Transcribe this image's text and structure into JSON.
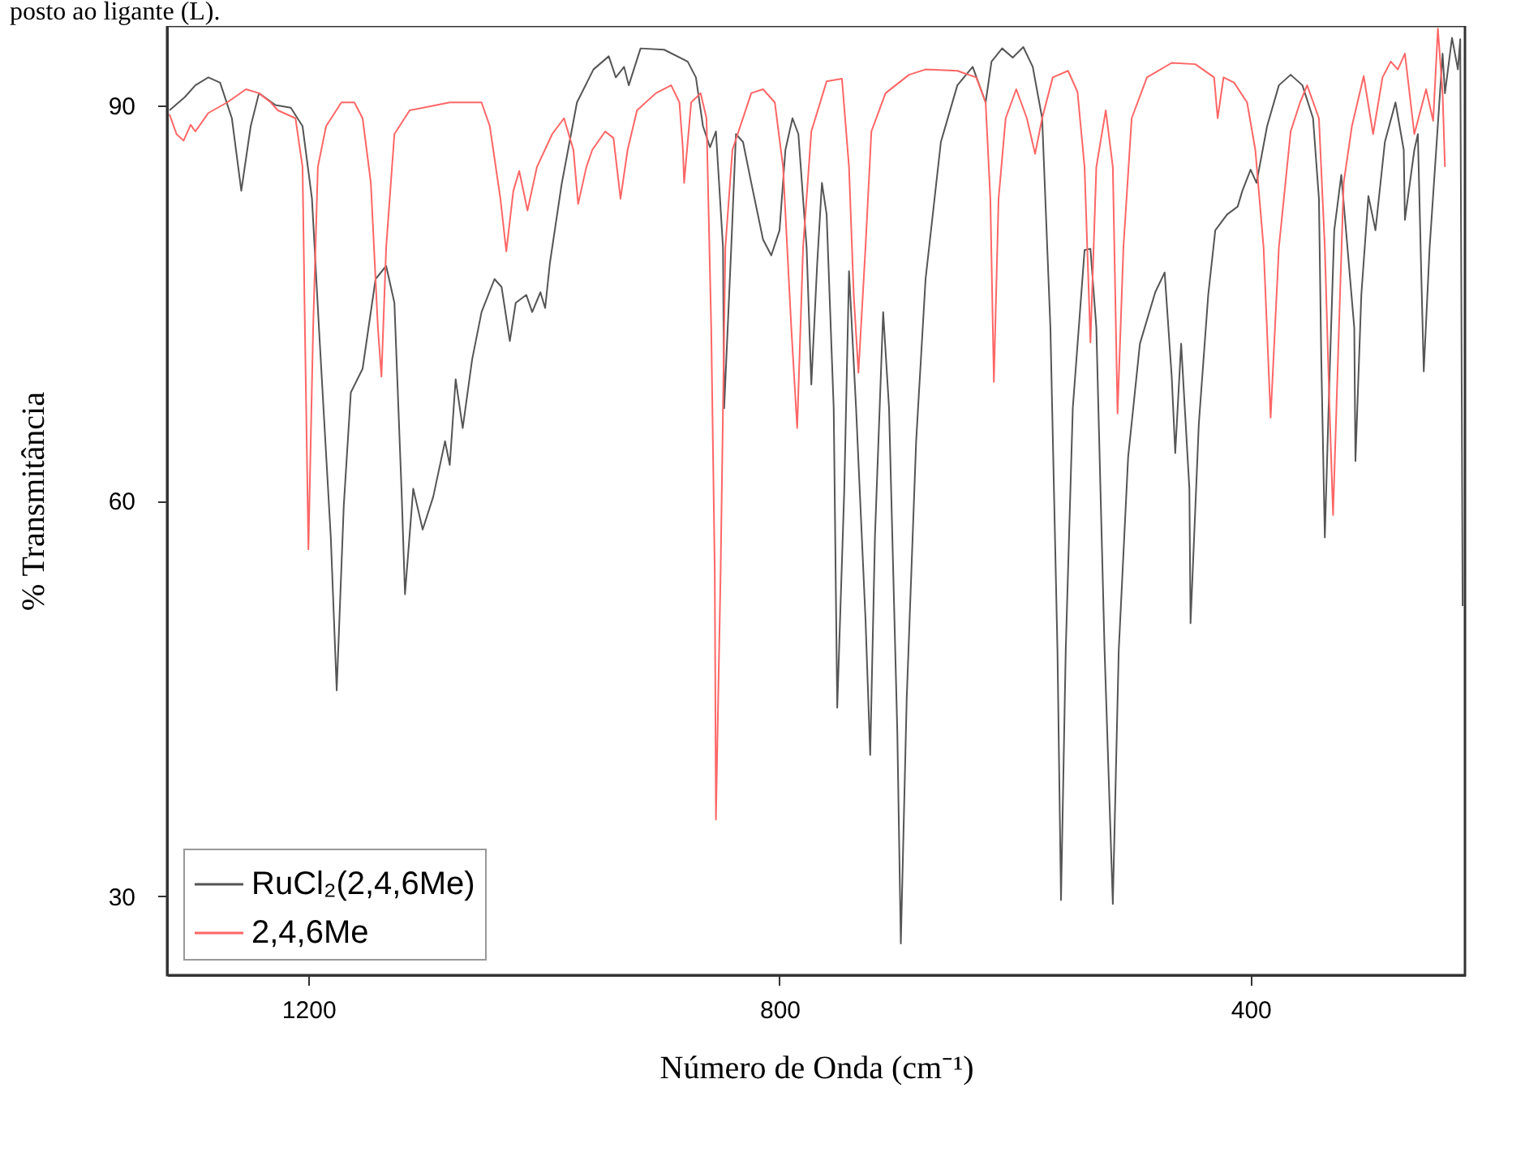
{
  "chart_data": {
    "type": "line",
    "xlabel": "Número de Onda (cm⁻¹)",
    "ylabel": "% Transmitância",
    "annotations": [
      "posto ao ligante (L)."
    ],
    "xlim": [
      1320,
      218
    ],
    "xticks": [
      1200,
      800,
      400
    ],
    "ylim": [
      24,
      96
    ],
    "yticks": [
      90,
      60,
      30
    ],
    "grid": false,
    "legend": "bottom left",
    "line_style": "solid",
    "marker": "none",
    "series": [
      {
        "name": "RuCl₂(2,4,6Me)",
        "color": "#555555",
        "x": [
          1318,
          1305,
          1296,
          1285,
          1275,
          1265,
          1257,
          1249,
          1242,
          1228,
          1215,
          1205,
          1197,
          1191,
          1181,
          1176,
          1170,
          1164,
          1154,
          1143,
          1134,
          1127,
          1121,
          1118,
          1111,
          1103,
          1094,
          1084,
          1080,
          1075,
          1069,
          1061,
          1053,
          1042,
          1036,
          1029,
          1024,
          1015,
          1010,
          1003,
          999,
          995,
          985,
          972,
          958,
          945,
          939,
          932,
          928,
          918,
          898,
          878,
          871,
          865,
          859,
          854,
          848,
          847,
          841,
          837,
          831,
          824,
          814,
          807,
          800,
          795,
          789,
          784,
          777,
          773,
          768,
          764,
          760,
          754,
          751,
          745,
          741,
          735,
          727,
          723,
          719,
          712,
          707,
          700,
          697,
          692,
          684,
          676,
          663,
          649,
          636,
          625,
          620,
          611,
          602,
          593,
          585,
          577,
          570,
          564,
          561,
          557,
          551,
          541,
          536,
          531,
          524,
          517,
          512,
          504,
          494,
          481,
          473,
          467,
          464,
          459,
          452,
          451,
          444,
          436,
          430,
          420,
          411,
          407,
          400,
          395,
          386,
          376,
          366,
          356,
          347,
          342,
          340,
          337,
          333,
          329,
          323,
          312,
          311,
          306,
          300,
          294,
          286,
          277,
          270,
          269,
          261,
          258,
          255,
          253,
          248,
          242,
          237,
          235,
          229,
          224,
          222,
          220
        ],
        "values": [
          89.6,
          90.6,
          91.5,
          92.1,
          91.7,
          89,
          83.5,
          88.4,
          90.9,
          90,
          89.8,
          88.4,
          82.9,
          73,
          57.2,
          45.6,
          59.6,
          68.2,
          70,
          76.8,
          77.8,
          75,
          60.9,
          52.9,
          60.9,
          57.8,
          60.3,
          64.5,
          62.7,
          69.2,
          65.5,
          70.7,
          74.3,
          76.8,
          76.2,
          72.1,
          75,
          75.6,
          74.3,
          75.8,
          74.6,
          78,
          84,
          90.2,
          92.7,
          93.7,
          92.1,
          92.9,
          91.5,
          94.3,
          94.2,
          93.3,
          92.1,
          88.4,
          86.8,
          88,
          79.2,
          67,
          79.2,
          87.8,
          87.2,
          84.1,
          79.8,
          78.6,
          80.5,
          86.6,
          89,
          87.8,
          79.2,
          68.8,
          78,
          84.1,
          81.7,
          67,
          44.3,
          60.9,
          77.4,
          67,
          51,
          40.7,
          57.2,
          74.3,
          67,
          42.5,
          26.4,
          45,
          64.5,
          76.8,
          87.2,
          91.5,
          92.9,
          90.2,
          93.3,
          94.3,
          93.6,
          94.4,
          92.9,
          89,
          73.1,
          48.6,
          29.7,
          48.6,
          67,
          79,
          79.1,
          73.1,
          48.6,
          29.4,
          48.6,
          63.3,
          71.9,
          75.8,
          77.3,
          69.4,
          63.6,
          71.9,
          60.9,
          50.7,
          65.8,
          75.6,
          80.5,
          81.7,
          82.3,
          83.5,
          85.1,
          84.1,
          88.4,
          91.5,
          92.3,
          91.5,
          89,
          82.9,
          70.7,
          57.2,
          69.4,
          80.5,
          84.7,
          73.1,
          63,
          75.6,
          83.1,
          80.5,
          87.2,
          90.2,
          86.6,
          81.3,
          86.6,
          87.8,
          76.8,
          69.8,
          79.2,
          87.2,
          93.9,
          90.9,
          95.1,
          92.7,
          95,
          52
        ]
      },
      {
        "name": "2,4,6Me",
        "color": "#ff6666",
        "x": [
          1318,
          1312,
          1306,
          1300,
          1296,
          1285,
          1269,
          1253,
          1242,
          1232,
          1226,
          1211,
          1205,
          1203,
          1200,
          1196,
          1192,
          1185,
          1172,
          1161,
          1154,
          1147,
          1141,
          1138,
          1134,
          1127,
          1114,
          1080,
          1053,
          1046,
          1037,
          1032,
          1026,
          1021,
          1014,
          1006,
          993,
          983,
          975,
          971,
          964,
          959,
          948,
          941,
          935,
          929,
          921,
          905,
          892,
          885,
          882,
          881,
          875,
          867,
          862,
          858,
          855,
          854,
          850,
          846,
          840,
          824,
          814,
          804,
          797,
          790,
          785,
          780,
          773,
          760,
          747,
          741,
          737,
          733,
          727,
          722,
          710,
          690,
          676,
          649,
          633,
          625,
          621,
          618,
          614,
          608,
          599,
          590,
          583,
          577,
          568,
          555,
          547,
          541,
          536,
          531,
          523,
          517,
          513,
          508,
          501,
          488,
          467,
          447,
          431,
          428,
          423,
          414,
          403,
          396,
          389,
          383,
          376,
          366,
          358,
          352,
          342,
          337,
          333,
          330,
          325,
          321,
          314,
          304,
          296,
          288,
          281,
          275,
          269,
          261,
          251,
          245,
          241,
          237,
          235
        ],
        "values": [
          89.3,
          87.8,
          87.3,
          88.5,
          88,
          89.4,
          90.2,
          91.2,
          90.9,
          90.2,
          89.6,
          89,
          85.3,
          73.1,
          56.3,
          73.1,
          85.3,
          88.4,
          90.2,
          90.2,
          89,
          84.1,
          73.1,
          69.4,
          79.2,
          87.8,
          89.6,
          90.2,
          90.2,
          88.4,
          82.9,
          78.9,
          83.5,
          85,
          82,
          85.3,
          87.8,
          89,
          86.6,
          82.5,
          85.3,
          86.6,
          88,
          87.5,
          82.9,
          86.6,
          89.6,
          90.9,
          91.5,
          90.2,
          86.6,
          84.1,
          90.2,
          90.9,
          89,
          73.1,
          54.7,
          35.8,
          54.7,
          79.2,
          86.6,
          90.9,
          91.2,
          90.2,
          85.3,
          73.1,
          65.5,
          79.2,
          88,
          91.8,
          92,
          85.3,
          75.6,
          69.7,
          79.2,
          88,
          90.9,
          92.3,
          92.7,
          92.6,
          92.1,
          90.2,
          82.9,
          69,
          82.9,
          89,
          91.2,
          89,
          86.3,
          89,
          92.1,
          92.6,
          91,
          85.3,
          72,
          85.3,
          89.6,
          85.3,
          66.6,
          79.2,
          89,
          92.1,
          93.2,
          93.1,
          92.1,
          89,
          92.1,
          91.7,
          90.2,
          86.6,
          79.2,
          66.3,
          79.2,
          88,
          90.2,
          91.5,
          89,
          79.2,
          67,
          58.9,
          73.1,
          84.1,
          88.4,
          92.2,
          87.8,
          92.1,
          93.3,
          92.7,
          93.9,
          87.8,
          91.2,
          88.8,
          95.8,
          90.9,
          85.3
        ]
      }
    ]
  }
}
